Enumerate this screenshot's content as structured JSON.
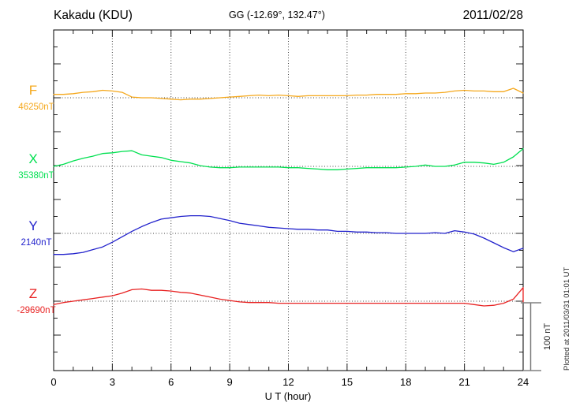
{
  "chart_data": {
    "type": "line",
    "title": "Kakadu (KDU)",
    "subtitle": "GG (-12.69°, 132.47°)",
    "date": "2011/02/28",
    "xlabel": "U T (hour)",
    "x_range": [
      0,
      24
    ],
    "x_ticks": [
      0,
      3,
      6,
      9,
      12,
      15,
      18,
      21,
      24
    ],
    "x_minor_step_hours": 1,
    "grid": "dotted vertical lines every 3 hours; dotted horizontal line at each component baseline",
    "legend_position": "left of axis, one colored label per component",
    "scale_bar": {
      "label": "100 nT",
      "value_nT": 100
    },
    "plotted_note": "Plotted at 2011/03/31 01:01 UT",
    "points_format": "[hour_UT, offset_in_nT_from_component_baseline]",
    "series": [
      {
        "name": "F",
        "baseline_label": "46250nT",
        "baseline_nT": 46250,
        "color": "#F5A81C",
        "points": [
          [
            0,
            5
          ],
          [
            0.5,
            5
          ],
          [
            1,
            6
          ],
          [
            1.5,
            8
          ],
          [
            2,
            9
          ],
          [
            2.5,
            11
          ],
          [
            3,
            10
          ],
          [
            3.5,
            8
          ],
          [
            4,
            1
          ],
          [
            4.5,
            0
          ],
          [
            5,
            0
          ],
          [
            5.5,
            -1
          ],
          [
            6,
            -2
          ],
          [
            6.5,
            -3
          ],
          [
            7,
            -2
          ],
          [
            7.5,
            -2
          ],
          [
            8,
            -1
          ],
          [
            8.5,
            0
          ],
          [
            9,
            1
          ],
          [
            9.5,
            2
          ],
          [
            10,
            3
          ],
          [
            10.5,
            4
          ],
          [
            11,
            3
          ],
          [
            11.5,
            4
          ],
          [
            12,
            3
          ],
          [
            12.5,
            2
          ],
          [
            13,
            3
          ],
          [
            13.5,
            3
          ],
          [
            14,
            3
          ],
          [
            14.5,
            3
          ],
          [
            15,
            3
          ],
          [
            15.5,
            4
          ],
          [
            16,
            4
          ],
          [
            16.5,
            5
          ],
          [
            17,
            5
          ],
          [
            17.5,
            5
          ],
          [
            18,
            6
          ],
          [
            18.5,
            6
          ],
          [
            19,
            7
          ],
          [
            19.5,
            7
          ],
          [
            20,
            8
          ],
          [
            20.5,
            10
          ],
          [
            21,
            11
          ],
          [
            21.5,
            10
          ],
          [
            22,
            10
          ],
          [
            22.5,
            9
          ],
          [
            23,
            9
          ],
          [
            23.5,
            14
          ],
          [
            24,
            7
          ]
        ]
      },
      {
        "name": "X",
        "baseline_label": "35380nT",
        "baseline_nT": 35380,
        "color": "#00E050",
        "points": [
          [
            0,
            0
          ],
          [
            0.5,
            3
          ],
          [
            1,
            8
          ],
          [
            1.5,
            12
          ],
          [
            2,
            15
          ],
          [
            2.5,
            19
          ],
          [
            3,
            20
          ],
          [
            3.5,
            22
          ],
          [
            4,
            23
          ],
          [
            4.5,
            17
          ],
          [
            5,
            15
          ],
          [
            5.5,
            13
          ],
          [
            6,
            9
          ],
          [
            6.5,
            7
          ],
          [
            7,
            5
          ],
          [
            7.5,
            1
          ],
          [
            8,
            -1
          ],
          [
            8.5,
            -2
          ],
          [
            9,
            -2
          ],
          [
            9.5,
            -1
          ],
          [
            10,
            -1
          ],
          [
            10.5,
            -1
          ],
          [
            11,
            -1
          ],
          [
            11.5,
            -1
          ],
          [
            12,
            -2
          ],
          [
            12.5,
            -2
          ],
          [
            13,
            -3
          ],
          [
            13.5,
            -4
          ],
          [
            14,
            -5
          ],
          [
            14.5,
            -5
          ],
          [
            15,
            -4
          ],
          [
            15.5,
            -3
          ],
          [
            16,
            -2
          ],
          [
            16.5,
            -2
          ],
          [
            17,
            -2
          ],
          [
            17.5,
            -2
          ],
          [
            18,
            -1
          ],
          [
            18.5,
            0
          ],
          [
            19,
            2
          ],
          [
            19.5,
            0
          ],
          [
            20,
            0
          ],
          [
            20.5,
            2
          ],
          [
            21,
            6
          ],
          [
            21.5,
            6
          ],
          [
            22,
            5
          ],
          [
            22.5,
            3
          ],
          [
            23,
            6
          ],
          [
            23.5,
            14
          ],
          [
            24,
            26
          ]
        ]
      },
      {
        "name": "Y",
        "baseline_label": "2140nT",
        "baseline_nT": 2140,
        "color": "#2222CC",
        "points": [
          [
            0,
            -31
          ],
          [
            0.5,
            -31
          ],
          [
            1,
            -30
          ],
          [
            1.5,
            -28
          ],
          [
            2,
            -24
          ],
          [
            2.5,
            -20
          ],
          [
            3,
            -13
          ],
          [
            3.5,
            -5
          ],
          [
            4,
            3
          ],
          [
            4.5,
            10
          ],
          [
            5,
            16
          ],
          [
            5.5,
            21
          ],
          [
            6,
            23
          ],
          [
            6.5,
            25
          ],
          [
            7,
            26
          ],
          [
            7.5,
            26
          ],
          [
            8,
            25
          ],
          [
            8.5,
            22
          ],
          [
            9,
            19
          ],
          [
            9.5,
            15
          ],
          [
            10,
            13
          ],
          [
            10.5,
            11
          ],
          [
            11,
            9
          ],
          [
            11.5,
            8
          ],
          [
            12,
            7
          ],
          [
            12.5,
            6
          ],
          [
            13,
            6
          ],
          [
            13.5,
            5
          ],
          [
            14,
            5
          ],
          [
            14.5,
            3
          ],
          [
            15,
            3
          ],
          [
            15.5,
            2
          ],
          [
            16,
            2
          ],
          [
            16.5,
            1
          ],
          [
            17,
            1
          ],
          [
            17.5,
            0
          ],
          [
            18,
            0
          ],
          [
            18.5,
            0
          ],
          [
            19,
            0
          ],
          [
            19.5,
            1
          ],
          [
            20,
            0
          ],
          [
            20.5,
            4
          ],
          [
            21,
            2
          ],
          [
            21.5,
            -1
          ],
          [
            22,
            -7
          ],
          [
            22.5,
            -14
          ],
          [
            23,
            -21
          ],
          [
            23.5,
            -27
          ],
          [
            24,
            -22
          ]
        ]
      },
      {
        "name": "Z",
        "baseline_label": "-29690nT",
        "baseline_nT": -29690,
        "color": "#E82222",
        "points": [
          [
            0,
            -5
          ],
          [
            0.5,
            -2
          ],
          [
            1,
            0
          ],
          [
            1.5,
            2
          ],
          [
            2,
            4
          ],
          [
            2.5,
            6
          ],
          [
            3,
            8
          ],
          [
            3.5,
            12
          ],
          [
            4,
            17
          ],
          [
            4.5,
            18
          ],
          [
            5,
            16
          ],
          [
            5.5,
            16
          ],
          [
            6,
            15
          ],
          [
            6.5,
            13
          ],
          [
            7,
            12
          ],
          [
            7.5,
            9
          ],
          [
            8,
            6
          ],
          [
            8.5,
            3
          ],
          [
            9,
            1
          ],
          [
            9.5,
            -1
          ],
          [
            10,
            -2
          ],
          [
            10.5,
            -2
          ],
          [
            11,
            -2
          ],
          [
            11.5,
            -3
          ],
          [
            12,
            -3
          ],
          [
            12.5,
            -3
          ],
          [
            13,
            -3
          ],
          [
            13.5,
            -3
          ],
          [
            14,
            -3
          ],
          [
            14.5,
            -3
          ],
          [
            15,
            -3
          ],
          [
            15.5,
            -3
          ],
          [
            16,
            -3
          ],
          [
            16.5,
            -3
          ],
          [
            17,
            -3
          ],
          [
            17.5,
            -3
          ],
          [
            18,
            -3
          ],
          [
            18.5,
            -3
          ],
          [
            19,
            -3
          ],
          [
            19.5,
            -3
          ],
          [
            20,
            -3
          ],
          [
            20.5,
            -3
          ],
          [
            21,
            -3
          ],
          [
            21.5,
            -5
          ],
          [
            22,
            -7
          ],
          [
            22.5,
            -6
          ],
          [
            23,
            -3
          ],
          [
            23.5,
            3
          ],
          [
            24,
            20
          ],
          [
            24,
            -2
          ]
        ]
      }
    ]
  }
}
